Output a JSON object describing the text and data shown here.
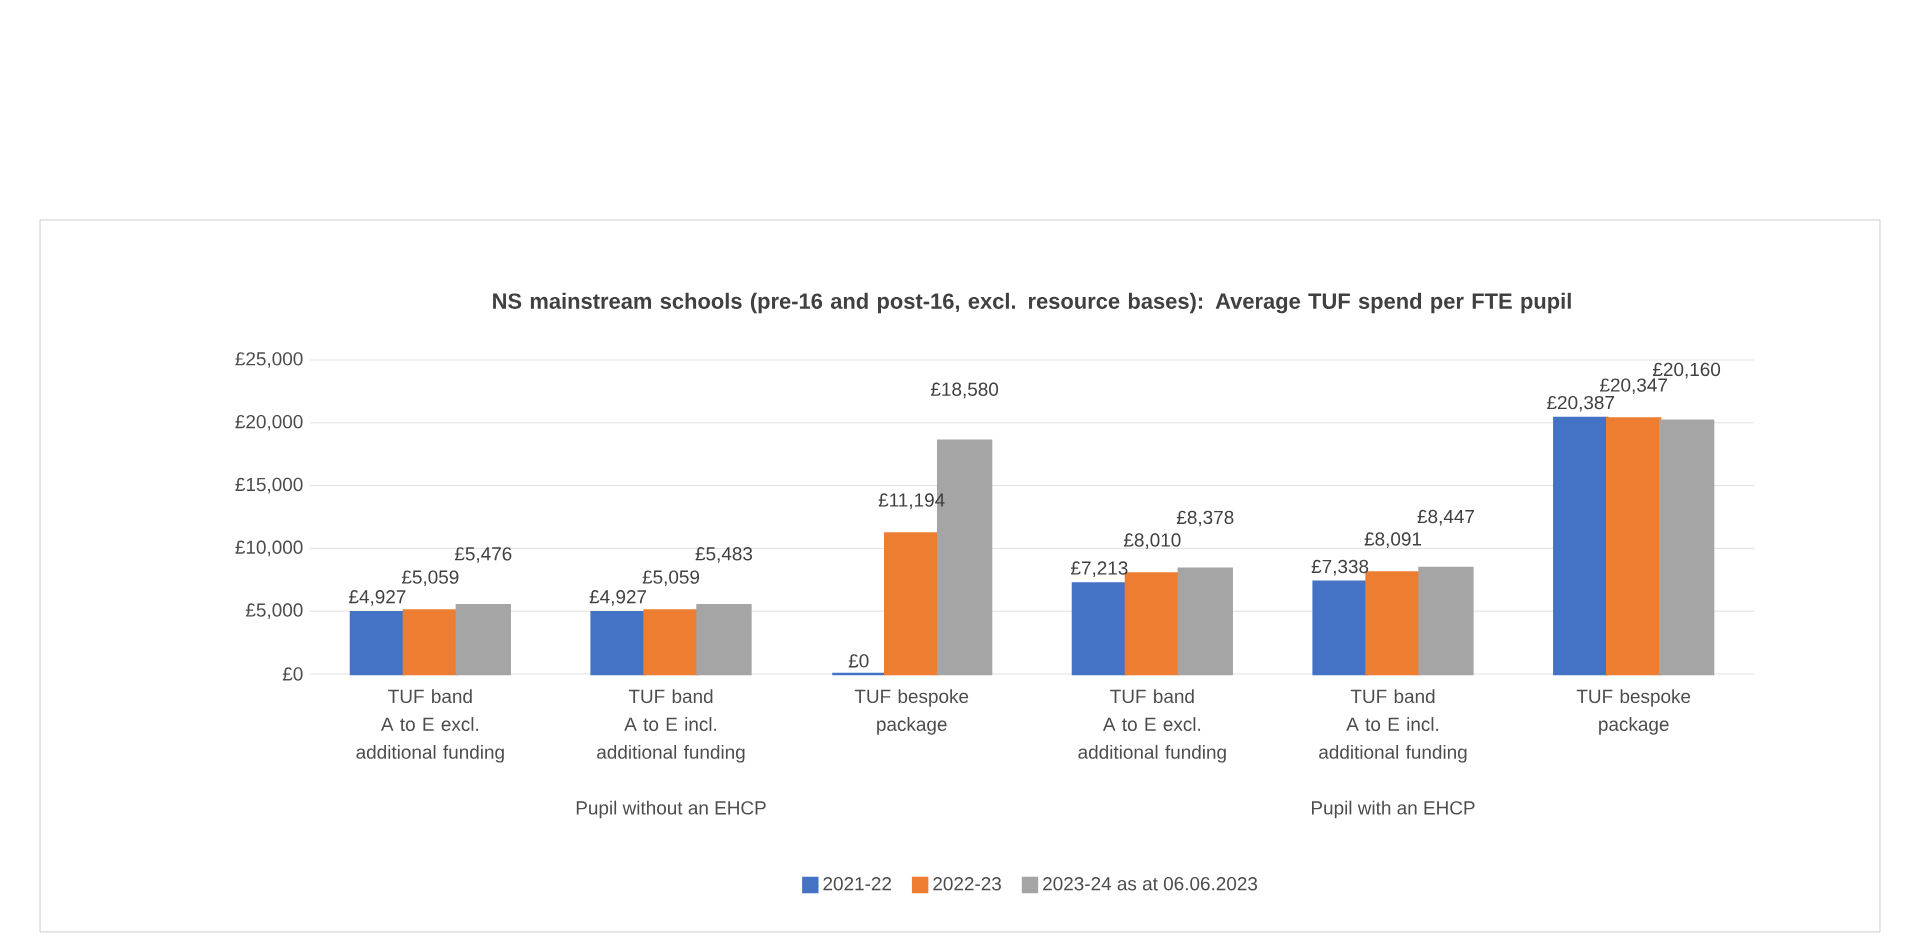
{
  "chart_data": {
    "type": "bar",
    "title": "NS mainstream schools (pre-16 and post-16, excl. resource bases): Average TUF spend per FTE pupil",
    "categories": [
      "TUF band A to E excl. additional funding",
      "TUF band A to E incl. additional funding",
      "TUF bespoke package",
      "TUF band A to E excl. additional funding",
      "TUF band A to E incl. additional funding",
      "TUF bespoke package"
    ],
    "series": [
      {
        "name": "2021-22",
        "color": "#4472c4",
        "values": [
          4927,
          4927,
          0,
          7213,
          7338,
          20387
        ],
        "value_labels": [
          "£4,927",
          "£4,927",
          "£0",
          "£7,213",
          "£7,338",
          "£20,387"
        ]
      },
      {
        "name": "2022-23",
        "color": "#ed7d31",
        "values": [
          5059,
          5059,
          11194,
          8010,
          8091,
          20347
        ],
        "value_labels": [
          "£5,059",
          "£5,059",
          "£11,194",
          "£8,010",
          "£8,091",
          "£20,347"
        ]
      },
      {
        "name": "2023-24 as at 06.06.2023",
        "color": "#a5a5a5",
        "values": [
          5476,
          5483,
          18580,
          8378,
          8447,
          20160
        ],
        "value_labels": [
          "£5,476",
          "£5,483",
          "£18,580",
          "£8,378",
          "£8,447",
          "£20,160"
        ]
      }
    ],
    "ylim": [
      0,
      25000
    ],
    "yticks": [
      {
        "value": 0,
        "label": "£0"
      },
      {
        "value": 5000,
        "label": "£5,000"
      },
      {
        "value": 10000,
        "label": "£10,000"
      },
      {
        "value": 15000,
        "label": "£15,000"
      },
      {
        "value": 20000,
        "label": "£20,000"
      },
      {
        "value": 25000,
        "label": "£25,000"
      }
    ],
    "annotations": [
      "Pupil without an EHCP",
      "Pupil with an EHCP"
    ],
    "grid": "y",
    "legend": "bottom"
  }
}
